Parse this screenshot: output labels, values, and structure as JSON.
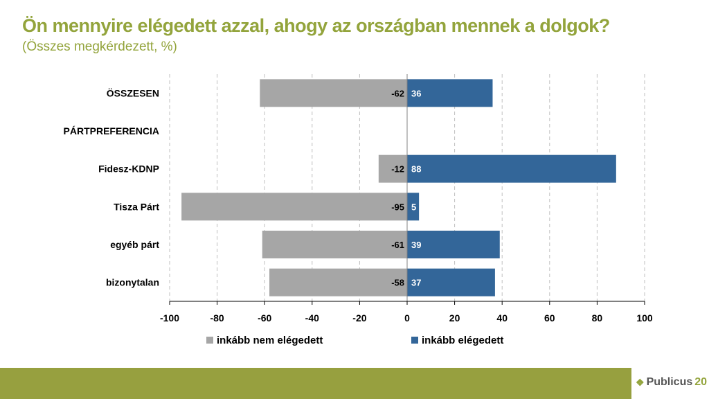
{
  "title": "Ön mennyire elégedett azzal, ahogy az országban mennek a dolgok?",
  "subtitle": "(Összes megkérdezett, %)",
  "logo": {
    "text": "Publicus",
    "number": "20"
  },
  "chart_data": {
    "type": "bar",
    "orientation": "horizontal-diverging",
    "categories": [
      "ÖSSZESEN",
      "PÁRTPREFERENCIA",
      "Fidesz-KDNP",
      "Tisza Párt",
      "egyéb párt",
      "bizonytalan"
    ],
    "series": [
      {
        "name": "inkább nem elégedett",
        "color": "#a6a6a6",
        "values": [
          -62,
          null,
          -12,
          -95,
          -61,
          -58
        ]
      },
      {
        "name": "inkább elégedett",
        "color": "#336699",
        "values": [
          36,
          null,
          88,
          5,
          39,
          37
        ]
      }
    ],
    "xlim": [
      -100,
      100
    ],
    "xticks": [
      -100,
      -80,
      -60,
      -40,
      -20,
      0,
      20,
      40,
      60,
      80,
      100
    ],
    "grid": "vertical-dashed",
    "legend": "bottom"
  }
}
